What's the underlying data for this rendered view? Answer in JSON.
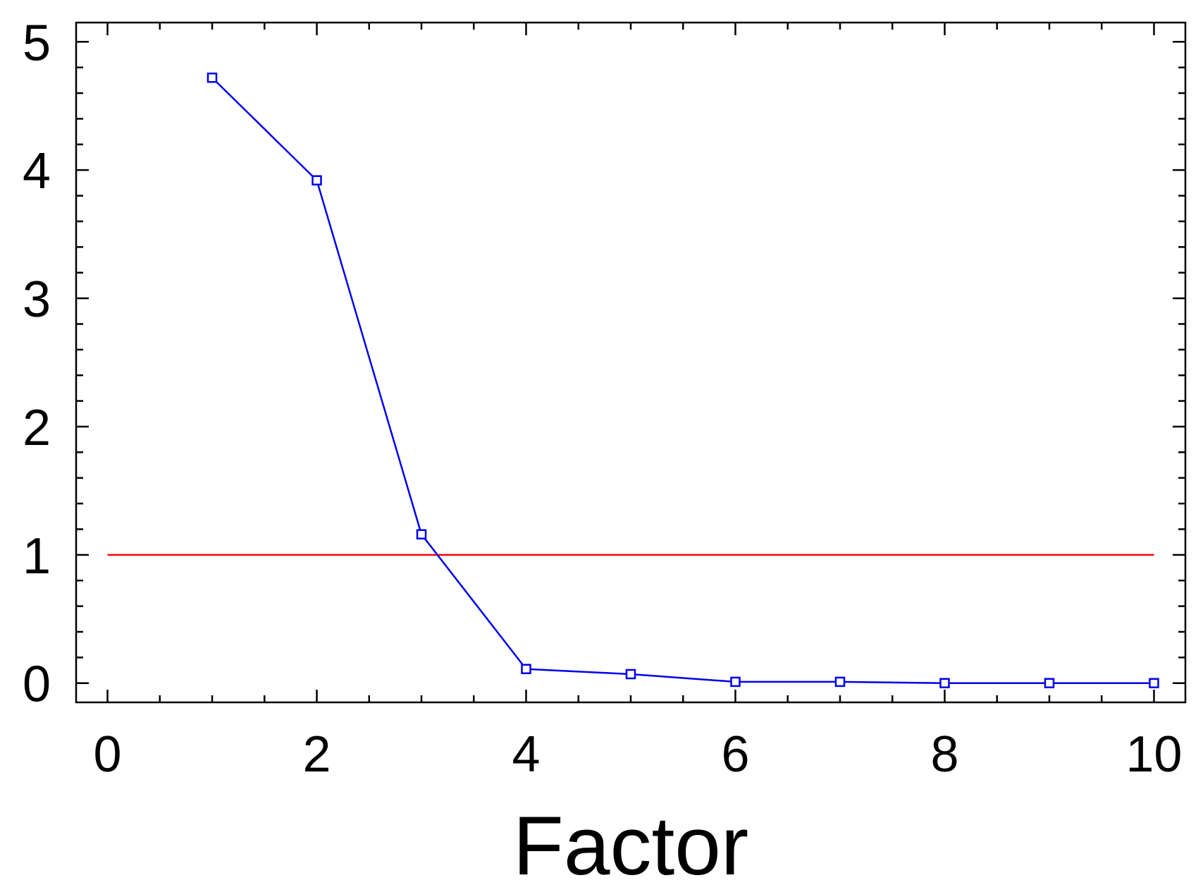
{
  "chart_data": {
    "type": "line",
    "title": "",
    "xlabel": "Factor",
    "ylabel": "",
    "xlim": [
      -0.3,
      10.3
    ],
    "ylim": [
      -0.15,
      5.15
    ],
    "xticks": [
      0,
      2,
      4,
      6,
      8,
      10
    ],
    "yticks": [
      0,
      1,
      2,
      3,
      4,
      5
    ],
    "xtick_labels": [
      "0",
      "2",
      "4",
      "6",
      "8",
      "10"
    ],
    "ytick_labels": [
      "0",
      "1",
      "2",
      "3",
      "4",
      "5"
    ],
    "x_minor_step": 0.5,
    "y_minor_step": 0.2,
    "grid": false,
    "series": [
      {
        "x": [
          1,
          2,
          3,
          4,
          5,
          6,
          7,
          8,
          9,
          10
        ],
        "values": [
          4.72,
          3.92,
          1.16,
          0.11,
          0.07,
          0.01,
          0.01,
          0.0,
          0.0,
          0.0
        ],
        "color": "#0000ee",
        "marker": "square-open"
      }
    ],
    "reference_lines": [
      {
        "y": 1,
        "x_range": [
          0,
          10
        ],
        "color": "#ff0000"
      }
    ]
  }
}
